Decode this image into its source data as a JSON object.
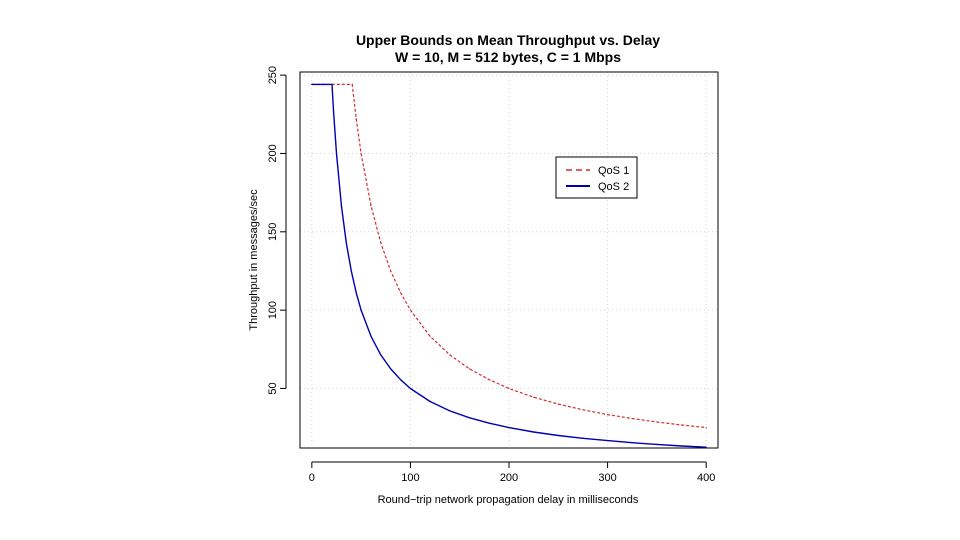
{
  "chart_data": {
    "type": "line",
    "title": "Upper Bounds on Mean Throughput vs. Delay",
    "subtitle": "W = 10, M = 512 bytes, C = 1 Mbps",
    "xlabel": "Round−trip network propagation delay in milliseconds",
    "ylabel": "Throughput  in  messages/sec",
    "xlim": [
      -12,
      412
    ],
    "ylim": [
      12,
      252
    ],
    "xticks": [
      "0",
      "100",
      "200",
      "300",
      "400"
    ],
    "yticks": [
      "50",
      "100",
      "150",
      "200",
      "250"
    ],
    "grid": true,
    "legend_position": "top-right",
    "series": [
      {
        "name": "QoS 1",
        "color": "#d32f2f",
        "style": "dashed",
        "x": [
          0,
          40.96,
          45,
          50,
          60,
          70,
          80,
          90,
          100,
          120,
          140,
          160,
          180,
          200,
          225,
          250,
          275,
          300,
          325,
          350,
          375,
          400
        ],
        "y": [
          244.1,
          244.1,
          222.2,
          200,
          166.7,
          142.9,
          125,
          111.1,
          100,
          83.3,
          71.4,
          62.5,
          55.6,
          50,
          44.4,
          40,
          36.4,
          33.3,
          30.8,
          28.6,
          26.7,
          25
        ]
      },
      {
        "name": "QoS 2",
        "color": "#0000b0",
        "style": "solid",
        "x": [
          0,
          20.48,
          22,
          25,
          30,
          35,
          40,
          45,
          50,
          60,
          70,
          80,
          90,
          100,
          120,
          140,
          160,
          180,
          200,
          225,
          250,
          275,
          300,
          325,
          350,
          375,
          400
        ],
        "y": [
          244.1,
          244.1,
          227.3,
          200,
          166.7,
          142.9,
          125,
          111.1,
          100,
          83.3,
          71.4,
          62.5,
          55.6,
          50,
          41.7,
          35.7,
          31.3,
          27.8,
          25,
          22.2,
          20,
          18.2,
          16.7,
          15.4,
          14.3,
          13.3,
          12.5
        ]
      }
    ]
  }
}
